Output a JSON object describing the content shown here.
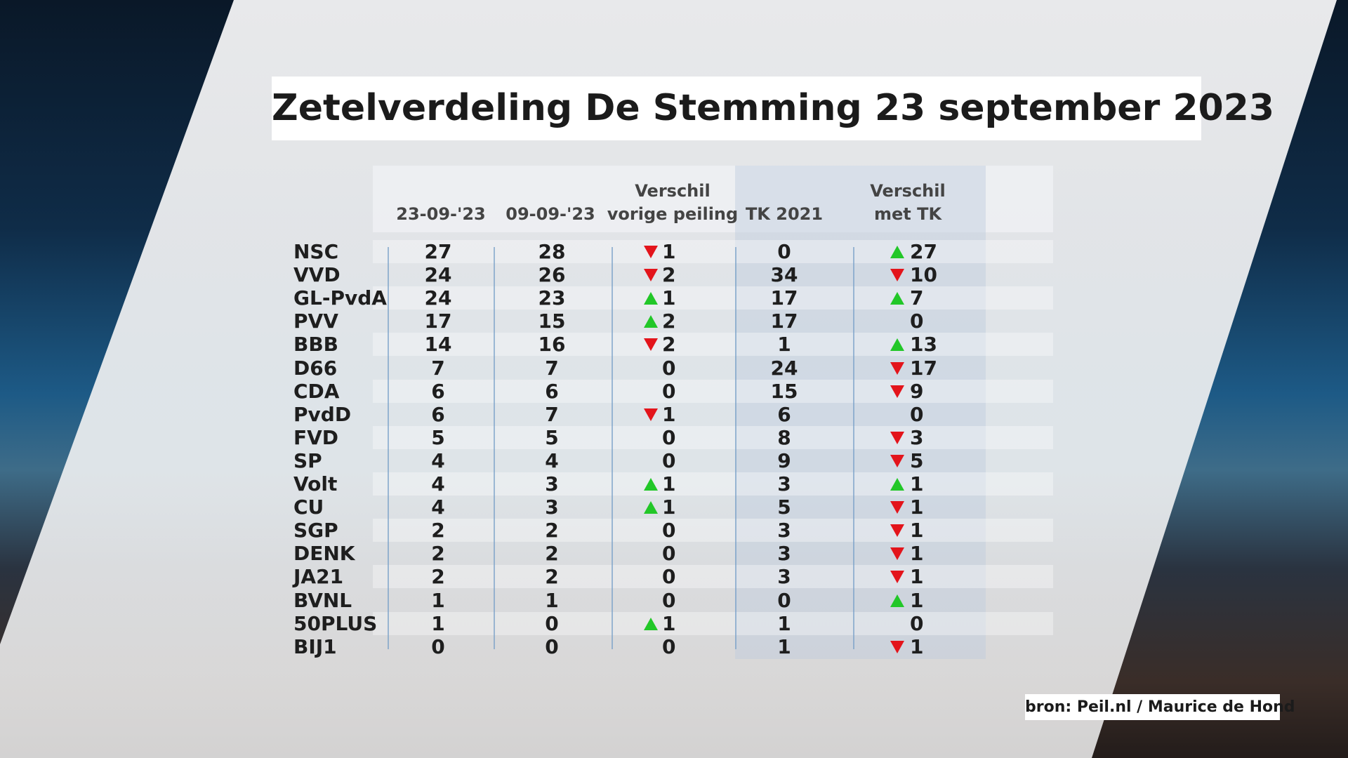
{
  "title": "Zetelverdeling De Stemming 23 september 2023",
  "table": {
    "headers": [
      [
        "23-09-'23"
      ],
      [
        "09-09-'23"
      ],
      [
        "Verschil",
        "vorige peiling"
      ],
      [
        "TK 2021"
      ],
      [
        "Verschil",
        "met TK"
      ]
    ],
    "rows": [
      {
        "party": "NSC",
        "current": 27,
        "previous": 28,
        "diff_previous": {
          "value": 1,
          "trend": "down"
        },
        "tk2021": 0,
        "diff_tk": {
          "value": 27,
          "trend": "up"
        }
      },
      {
        "party": "VVD",
        "current": 24,
        "previous": 26,
        "diff_previous": {
          "value": 2,
          "trend": "down"
        },
        "tk2021": 34,
        "diff_tk": {
          "value": 10,
          "trend": "down"
        }
      },
      {
        "party": "GL-PvdA",
        "current": 24,
        "previous": 23,
        "diff_previous": {
          "value": 1,
          "trend": "up"
        },
        "tk2021": 17,
        "diff_tk": {
          "value": 7,
          "trend": "up"
        }
      },
      {
        "party": "PVV",
        "current": 17,
        "previous": 15,
        "diff_previous": {
          "value": 2,
          "trend": "up"
        },
        "tk2021": 17,
        "diff_tk": {
          "value": 0
        }
      },
      {
        "party": "BBB",
        "current": 14,
        "previous": 16,
        "diff_previous": {
          "value": 2,
          "trend": "down"
        },
        "tk2021": 1,
        "diff_tk": {
          "value": 13,
          "trend": "up"
        }
      },
      {
        "party": "D66",
        "current": 7,
        "previous": 7,
        "diff_previous": {
          "value": 0
        },
        "tk2021": 24,
        "diff_tk": {
          "value": 17,
          "trend": "down"
        }
      },
      {
        "party": "CDA",
        "current": 6,
        "previous": 6,
        "diff_previous": {
          "value": 0
        },
        "tk2021": 15,
        "diff_tk": {
          "value": 9,
          "trend": "down"
        }
      },
      {
        "party": "PvdD",
        "current": 6,
        "previous": 7,
        "diff_previous": {
          "value": 1,
          "trend": "down"
        },
        "tk2021": 6,
        "diff_tk": {
          "value": 0
        }
      },
      {
        "party": "FVD",
        "current": 5,
        "previous": 5,
        "diff_previous": {
          "value": 0
        },
        "tk2021": 8,
        "diff_tk": {
          "value": 3,
          "trend": "down"
        }
      },
      {
        "party": "SP",
        "current": 4,
        "previous": 4,
        "diff_previous": {
          "value": 0
        },
        "tk2021": 9,
        "diff_tk": {
          "value": 5,
          "trend": "down"
        }
      },
      {
        "party": "Volt",
        "current": 4,
        "previous": 3,
        "diff_previous": {
          "value": 1,
          "trend": "up"
        },
        "tk2021": 3,
        "diff_tk": {
          "value": 1,
          "trend": "up"
        }
      },
      {
        "party": "CU",
        "current": 4,
        "previous": 3,
        "diff_previous": {
          "value": 1,
          "trend": "up"
        },
        "tk2021": 5,
        "diff_tk": {
          "value": 1,
          "trend": "down"
        }
      },
      {
        "party": "SGP",
        "current": 2,
        "previous": 2,
        "diff_previous": {
          "value": 0
        },
        "tk2021": 3,
        "diff_tk": {
          "value": 1,
          "trend": "down"
        }
      },
      {
        "party": "DENK",
        "current": 2,
        "previous": 2,
        "diff_previous": {
          "value": 0
        },
        "tk2021": 3,
        "diff_tk": {
          "value": 1,
          "trend": "down"
        }
      },
      {
        "party": "JA21",
        "current": 2,
        "previous": 2,
        "diff_previous": {
          "value": 0
        },
        "tk2021": 3,
        "diff_tk": {
          "value": 1,
          "trend": "down"
        }
      },
      {
        "party": "BVNL",
        "current": 1,
        "previous": 1,
        "diff_previous": {
          "value": 0
        },
        "tk2021": 0,
        "diff_tk": {
          "value": 1,
          "trend": "up"
        }
      },
      {
        "party": "50PLUS",
        "current": 1,
        "previous": 0,
        "diff_previous": {
          "value": 1,
          "trend": "up"
        },
        "tk2021": 1,
        "diff_tk": {
          "value": 0
        }
      },
      {
        "party": "BIJ1",
        "current": 0,
        "previous": 0,
        "diff_previous": {
          "value": 0
        },
        "tk2021": 1,
        "diff_tk": {
          "value": 1,
          "trend": "down"
        }
      }
    ]
  },
  "source": "bron: Peil.nl / Maurice de Hond"
}
